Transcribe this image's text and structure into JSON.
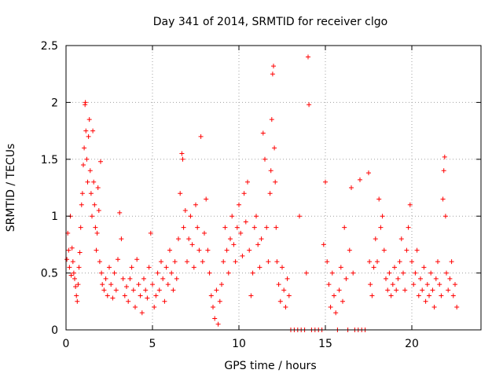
{
  "chart_data": {
    "type": "scatter",
    "title": "Day 341 of 2014, SRMTID for receiver clgo",
    "xlabel": "GPS time / hours",
    "ylabel": "SRMTID / TECUs",
    "xlim": [
      0,
      24
    ],
    "ylim": [
      0,
      2.5
    ],
    "xticks": [
      0,
      5,
      10,
      15,
      20
    ],
    "yticks": [
      0,
      0.5,
      1,
      1.5,
      2,
      2.5
    ],
    "xtick_labels": [
      "0",
      "5",
      "10",
      "15",
      "20"
    ],
    "ytick_labels": [
      "0",
      "0.5",
      "1",
      "1.5",
      "2",
      "2.5"
    ],
    "grid": true,
    "marker": "+",
    "color": "#ff0000",
    "series": [
      {
        "name": "clgo",
        "points": [
          [
            0.05,
            0.62
          ],
          [
            0.1,
            0.85
          ],
          [
            0.15,
            0.7
          ],
          [
            0.2,
            0.55
          ],
          [
            0.25,
            1.0
          ],
          [
            0.3,
            0.48
          ],
          [
            0.35,
            0.72
          ],
          [
            0.4,
            0.6
          ],
          [
            0.45,
            0.5
          ],
          [
            0.5,
            0.45
          ],
          [
            0.55,
            0.38
          ],
          [
            0.6,
            0.3
          ],
          [
            0.65,
            0.25
          ],
          [
            0.7,
            0.4
          ],
          [
            0.75,
            0.55
          ],
          [
            0.8,
            0.68
          ],
          [
            0.85,
            0.9
          ],
          [
            0.9,
            1.1
          ],
          [
            0.95,
            1.2
          ],
          [
            1.0,
            1.45
          ],
          [
            1.05,
            1.6
          ],
          [
            1.1,
            1.98
          ],
          [
            1.12,
            2.0
          ],
          [
            1.15,
            1.75
          ],
          [
            1.2,
            1.5
          ],
          [
            1.25,
            1.3
          ],
          [
            1.3,
            1.7
          ],
          [
            1.35,
            1.85
          ],
          [
            1.4,
            1.4
          ],
          [
            1.45,
            1.2
          ],
          [
            1.5,
            1.0
          ],
          [
            1.55,
            1.75
          ],
          [
            1.6,
            1.3
          ],
          [
            1.65,
            1.1
          ],
          [
            1.7,
            0.9
          ],
          [
            1.75,
            0.7
          ],
          [
            1.8,
            0.85
          ],
          [
            1.85,
            1.25
          ],
          [
            1.9,
            1.05
          ],
          [
            1.95,
            0.6
          ],
          [
            2.0,
            1.48
          ],
          [
            2.05,
            0.5
          ],
          [
            2.1,
            0.4
          ],
          [
            2.2,
            0.35
          ],
          [
            2.3,
            0.45
          ],
          [
            2.4,
            0.3
          ],
          [
            2.5,
            0.55
          ],
          [
            2.6,
            0.4
          ],
          [
            2.7,
            0.28
          ],
          [
            2.8,
            0.5
          ],
          [
            2.9,
            0.35
          ],
          [
            3.0,
            0.62
          ],
          [
            3.1,
            1.03
          ],
          [
            3.2,
            0.8
          ],
          [
            3.3,
            0.45
          ],
          [
            3.4,
            0.3
          ],
          [
            3.5,
            0.38
          ],
          [
            3.6,
            0.25
          ],
          [
            3.7,
            0.45
          ],
          [
            3.8,
            0.55
          ],
          [
            3.9,
            0.35
          ],
          [
            4.0,
            0.2
          ],
          [
            4.1,
            0.62
          ],
          [
            4.2,
            0.4
          ],
          [
            4.3,
            0.3
          ],
          [
            4.4,
            0.15
          ],
          [
            4.5,
            0.45
          ],
          [
            4.6,
            0.35
          ],
          [
            4.7,
            0.28
          ],
          [
            4.8,
            0.55
          ],
          [
            4.9,
            0.85
          ],
          [
            5.0,
            0.4
          ],
          [
            5.1,
            0.2
          ],
          [
            5.2,
            0.3
          ],
          [
            5.3,
            0.5
          ],
          [
            5.4,
            0.35
          ],
          [
            5.5,
            0.6
          ],
          [
            5.6,
            0.45
          ],
          [
            5.7,
            0.25
          ],
          [
            5.8,
            0.55
          ],
          [
            5.9,
            0.4
          ],
          [
            6.0,
            0.7
          ],
          [
            6.1,
            0.5
          ],
          [
            6.2,
            0.35
          ],
          [
            6.3,
            0.6
          ],
          [
            6.4,
            0.45
          ],
          [
            6.5,
            0.8
          ],
          [
            6.6,
            1.2
          ],
          [
            6.7,
            1.55
          ],
          [
            6.75,
            1.5
          ],
          [
            6.8,
            0.9
          ],
          [
            6.9,
            1.05
          ],
          [
            7.0,
            0.6
          ],
          [
            7.1,
            0.8
          ],
          [
            7.2,
            1.0
          ],
          [
            7.3,
            0.75
          ],
          [
            7.4,
            0.55
          ],
          [
            7.5,
            1.1
          ],
          [
            7.6,
            0.9
          ],
          [
            7.7,
            0.7
          ],
          [
            7.8,
            1.7
          ],
          [
            7.9,
            0.6
          ],
          [
            8.0,
            0.85
          ],
          [
            8.1,
            1.15
          ],
          [
            8.2,
            0.7
          ],
          [
            8.3,
            0.5
          ],
          [
            8.4,
            0.3
          ],
          [
            8.5,
            0.2
          ],
          [
            8.6,
            0.1
          ],
          [
            8.7,
            0.35
          ],
          [
            8.8,
            0.05
          ],
          [
            8.9,
            0.25
          ],
          [
            9.0,
            0.4
          ],
          [
            9.1,
            0.6
          ],
          [
            9.2,
            0.9
          ],
          [
            9.3,
            0.7
          ],
          [
            9.4,
            0.5
          ],
          [
            9.5,
            0.8
          ],
          [
            9.6,
            1.0
          ],
          [
            9.7,
            0.75
          ],
          [
            9.8,
            0.6
          ],
          [
            9.9,
            0.9
          ],
          [
            10.0,
            1.1
          ],
          [
            10.1,
            0.85
          ],
          [
            10.2,
            0.65
          ],
          [
            10.3,
            1.2
          ],
          [
            10.4,
            0.95
          ],
          [
            10.5,
            1.3
          ],
          [
            10.6,
            0.7
          ],
          [
            10.7,
            0.3
          ],
          [
            10.8,
            0.5
          ],
          [
            10.9,
            0.9
          ],
          [
            11.0,
            1.0
          ],
          [
            11.1,
            0.75
          ],
          [
            11.2,
            0.55
          ],
          [
            11.3,
            0.8
          ],
          [
            11.4,
            1.73
          ],
          [
            11.5,
            1.5
          ],
          [
            11.6,
            0.9
          ],
          [
            11.7,
            0.6
          ],
          [
            11.8,
            1.2
          ],
          [
            11.85,
            1.4
          ],
          [
            11.9,
            1.85
          ],
          [
            11.95,
            2.25
          ],
          [
            12.0,
            2.32
          ],
          [
            12.05,
            1.6
          ],
          [
            12.1,
            1.3
          ],
          [
            12.15,
            0.9
          ],
          [
            12.2,
            0.6
          ],
          [
            12.3,
            0.4
          ],
          [
            12.4,
            0.25
          ],
          [
            12.5,
            0.55
          ],
          [
            12.6,
            0.35
          ],
          [
            12.7,
            0.2
          ],
          [
            12.8,
            0.45
          ],
          [
            12.9,
            0.3
          ],
          [
            13.0,
            0.0
          ],
          [
            13.2,
            0.0
          ],
          [
            13.4,
            0.0
          ],
          [
            13.5,
            1.0
          ],
          [
            13.6,
            0.0
          ],
          [
            13.8,
            0.0
          ],
          [
            13.9,
            0.5
          ],
          [
            14.0,
            2.4
          ],
          [
            14.05,
            1.98
          ],
          [
            14.2,
            0.0
          ],
          [
            14.4,
            0.0
          ],
          [
            14.6,
            0.0
          ],
          [
            14.8,
            0.0
          ],
          [
            14.9,
            0.75
          ],
          [
            15.0,
            1.3
          ],
          [
            15.1,
            0.6
          ],
          [
            15.2,
            0.4
          ],
          [
            15.3,
            0.2
          ],
          [
            15.4,
            0.5
          ],
          [
            15.5,
            0.3
          ],
          [
            15.6,
            0.15
          ],
          [
            15.7,
            0.0
          ],
          [
            15.8,
            0.35
          ],
          [
            15.9,
            0.55
          ],
          [
            16.0,
            0.25
          ],
          [
            16.1,
            0.9
          ],
          [
            16.2,
            0.45
          ],
          [
            16.3,
            0.0
          ],
          [
            16.4,
            0.7
          ],
          [
            16.5,
            1.25
          ],
          [
            16.6,
            0.5
          ],
          [
            16.7,
            0.0
          ],
          [
            16.9,
            0.0
          ],
          [
            17.0,
            1.32
          ],
          [
            17.1,
            0.0
          ],
          [
            17.3,
            0.0
          ],
          [
            17.5,
            1.38
          ],
          [
            17.55,
            0.6
          ],
          [
            17.6,
            0.4
          ],
          [
            17.7,
            0.3
          ],
          [
            17.8,
            0.55
          ],
          [
            17.9,
            0.8
          ],
          [
            18.0,
            0.6
          ],
          [
            18.1,
            1.15
          ],
          [
            18.2,
            0.9
          ],
          [
            18.3,
            1.0
          ],
          [
            18.4,
            0.7
          ],
          [
            18.5,
            0.45
          ],
          [
            18.6,
            0.35
          ],
          [
            18.7,
            0.5
          ],
          [
            18.8,
            0.3
          ],
          [
            18.9,
            0.4
          ],
          [
            19.0,
            0.55
          ],
          [
            19.1,
            0.35
          ],
          [
            19.2,
            0.45
          ],
          [
            19.3,
            0.6
          ],
          [
            19.4,
            0.8
          ],
          [
            19.5,
            0.5
          ],
          [
            19.6,
            0.35
          ],
          [
            19.7,
            0.7
          ],
          [
            19.8,
            0.9
          ],
          [
            19.9,
            1.1
          ],
          [
            20.0,
            0.6
          ],
          [
            20.1,
            0.4
          ],
          [
            20.2,
            0.5
          ],
          [
            20.3,
            0.7
          ],
          [
            20.4,
            0.3
          ],
          [
            20.5,
            0.45
          ],
          [
            20.6,
            0.35
          ],
          [
            20.7,
            0.55
          ],
          [
            20.8,
            0.25
          ],
          [
            20.9,
            0.4
          ],
          [
            21.0,
            0.3
          ],
          [
            21.1,
            0.5
          ],
          [
            21.2,
            0.35
          ],
          [
            21.3,
            0.2
          ],
          [
            21.4,
            0.45
          ],
          [
            21.5,
            0.6
          ],
          [
            21.6,
            0.4
          ],
          [
            21.7,
            0.3
          ],
          [
            21.8,
            1.15
          ],
          [
            21.85,
            1.4
          ],
          [
            21.9,
            1.52
          ],
          [
            21.95,
            1.0
          ],
          [
            22.0,
            0.5
          ],
          [
            22.1,
            0.35
          ],
          [
            22.2,
            0.45
          ],
          [
            22.3,
            0.6
          ],
          [
            22.4,
            0.3
          ],
          [
            22.5,
            0.4
          ],
          [
            22.6,
            0.2
          ]
        ]
      }
    ]
  }
}
